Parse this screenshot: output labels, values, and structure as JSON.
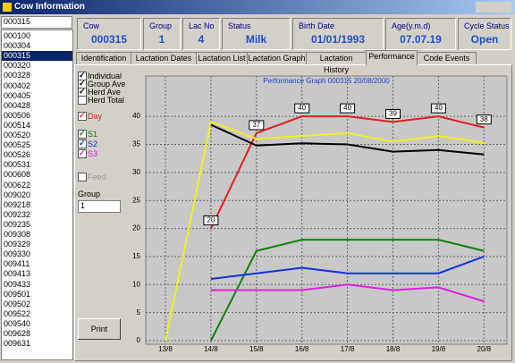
{
  "window": {
    "title": "Cow Information"
  },
  "search": "000315",
  "cow_list": {
    "items": [
      "000100",
      "000304",
      "000315",
      "000320",
      "000328",
      "000402",
      "000405",
      "000428",
      "000506",
      "000514",
      "000520",
      "000525",
      "000526",
      "000531",
      "000608",
      "000622",
      "009020",
      "009218",
      "009232",
      "009235",
      "009308",
      "009329",
      "009330",
      "009411",
      "009413",
      "009433",
      "009501",
      "009502",
      "009522",
      "009540",
      "009628",
      "009631"
    ],
    "selected": 2
  },
  "header": {
    "fields": [
      {
        "label": "Cow",
        "value": "000315"
      },
      {
        "label": "Group",
        "value": "1"
      },
      {
        "label": "Lac No",
        "value": "4"
      },
      {
        "label": "Status",
        "value": "Milk"
      },
      {
        "label": "Birth Date",
        "value": "01/01/1993"
      },
      {
        "label": "Age(y.m.d)",
        "value": "07.07.19"
      },
      {
        "label": "Cycle Status",
        "value": "Open"
      }
    ]
  },
  "tabs": {
    "items": [
      "Identification",
      "Lactation Dates",
      "Lactation List",
      "Lactation Graph",
      "Lactation History",
      "Performance",
      "Code Events"
    ],
    "active": 5
  },
  "options": {
    "individual": "Individual",
    "herd_total": "Herd Total",
    "feed": "Feed",
    "group_label": "Group",
    "group_value": "1",
    "print": "Print"
  },
  "chart_data": {
    "type": "line",
    "title": "Performance Graph 000315  20/08/2000",
    "categories": [
      "13/8",
      "14/8",
      "15/8",
      "16/8",
      "17/8",
      "18/8",
      "19/8",
      "20/8"
    ],
    "ylim": [
      0,
      46
    ],
    "yticks": [
      0,
      5,
      10,
      15,
      20,
      25,
      30,
      35,
      40
    ],
    "grid": true,
    "series": [
      {
        "name": "Day",
        "color": "#e02020",
        "values": [
          null,
          20,
          37,
          40,
          40,
          39,
          40,
          38
        ],
        "labels": true
      },
      {
        "name": "Group Ave",
        "color": "#f0f020",
        "values": [
          0,
          39,
          36,
          36.5,
          37,
          35.5,
          36.5,
          35.3
        ]
      },
      {
        "name": "Herd Ave",
        "color": "#000000",
        "values": [
          null,
          38.5,
          34.8,
          35.2,
          35,
          33.7,
          34,
          33.2
        ]
      },
      {
        "name": "S1",
        "color": "#108010",
        "values": [
          null,
          0,
          16,
          18,
          18,
          18,
          18,
          16
        ]
      },
      {
        "name": "S2",
        "color": "#1030e0",
        "values": [
          null,
          11,
          12,
          13,
          12,
          12,
          12,
          15
        ]
      },
      {
        "name": "S3",
        "color": "#e020e0",
        "values": [
          null,
          9,
          9,
          9,
          10,
          9,
          9.5,
          7
        ]
      }
    ]
  }
}
